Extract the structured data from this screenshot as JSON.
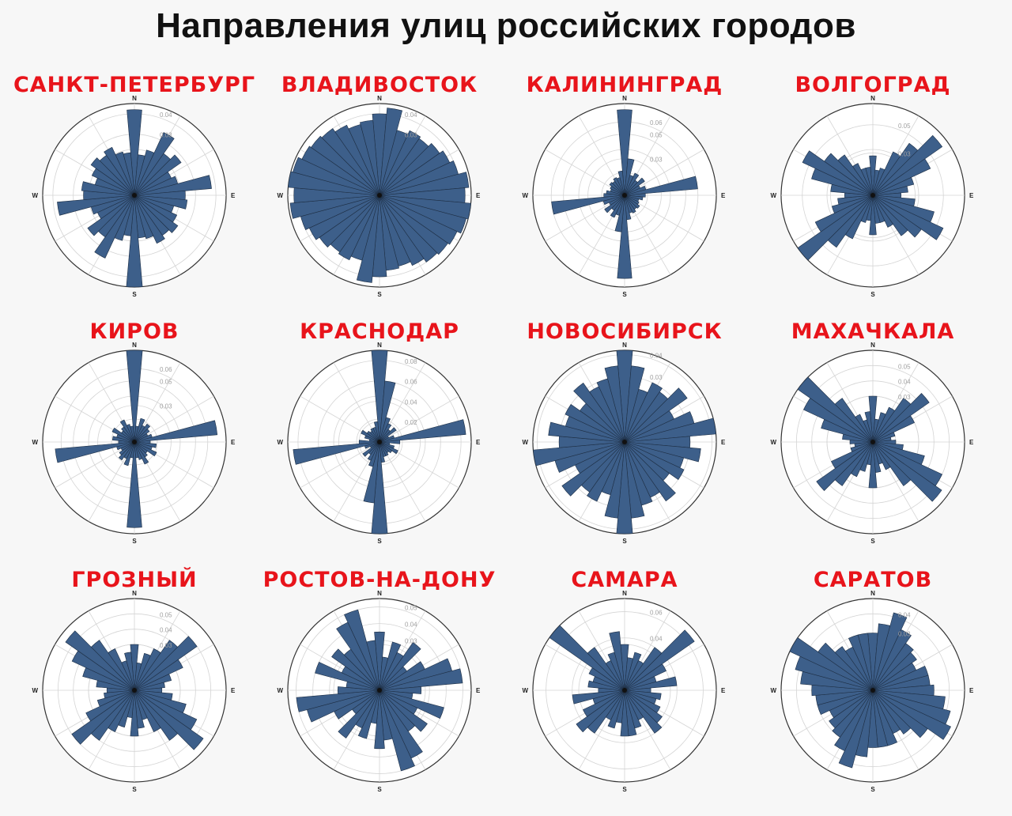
{
  "title": "Направления улиц российских городов",
  "colors": {
    "bar": "#3d5f8a",
    "bar_edge": "#1e2f45",
    "title_city": "#e8141b"
  },
  "cardinals": {
    "n": "N",
    "e": "E",
    "s": "S",
    "w": "W"
  },
  "chart_data": [
    {
      "type": "polar-bar",
      "title": "САНКТ-ПЕТЕРБУРГ",
      "rmax": 0.045,
      "ticks": [
        "0.03",
        "0.04"
      ],
      "tick_values": [
        0.03,
        0.04
      ],
      "values": [
        0.042,
        0.02,
        0.023,
        0.034,
        0.025,
        0.028,
        0.02,
        0.022,
        0.038,
        0.025,
        0.026,
        0.02,
        0.023,
        0.026,
        0.024,
        0.026,
        0.022,
        0.021,
        0.045,
        0.02,
        0.023,
        0.034,
        0.025,
        0.028,
        0.02,
        0.022,
        0.038,
        0.025,
        0.026,
        0.02,
        0.023,
        0.026,
        0.024,
        0.026,
        0.022,
        0.021
      ]
    },
    {
      "type": "polar-bar",
      "title": "ВЛАДИВОСТОК",
      "rmax": 0.045,
      "ticks": [
        "0.03",
        "0.04"
      ],
      "tick_values": [
        0.03,
        0.04
      ],
      "values": [
        0.04,
        0.043,
        0.033,
        0.035,
        0.034,
        0.036,
        0.038,
        0.04,
        0.044,
        0.042,
        0.045,
        0.044,
        0.042,
        0.041,
        0.04,
        0.038,
        0.036,
        0.037,
        0.04,
        0.043,
        0.033,
        0.035,
        0.034,
        0.036,
        0.038,
        0.04,
        0.044,
        0.042,
        0.045,
        0.044,
        0.042,
        0.041,
        0.04,
        0.038,
        0.036,
        0.037
      ]
    },
    {
      "type": "polar-bar",
      "title": "КАЛИНИНГРАД",
      "rmax": 0.075,
      "ticks": [
        "0.03",
        "0.05",
        "0.06"
      ],
      "tick_values": [
        0.03,
        0.05,
        0.06
      ],
      "values": [
        0.07,
        0.03,
        0.017,
        0.02,
        0.015,
        0.02,
        0.014,
        0.018,
        0.06,
        0.017,
        0.015,
        0.012,
        0.013,
        0.015,
        0.014,
        0.016,
        0.015,
        0.02,
        0.068,
        0.03,
        0.017,
        0.02,
        0.015,
        0.02,
        0.014,
        0.018,
        0.06,
        0.017,
        0.015,
        0.012,
        0.013,
        0.015,
        0.014,
        0.016,
        0.015,
        0.02
      ]
    },
    {
      "type": "polar-bar",
      "title": "ВОЛГОГРАД",
      "rmax": 0.065,
      "ticks": [
        "0.03",
        "0.05"
      ],
      "tick_values": [
        0.03,
        0.05
      ],
      "values": [
        0.028,
        0.018,
        0.02,
        0.034,
        0.045,
        0.06,
        0.045,
        0.03,
        0.025,
        0.02,
        0.03,
        0.045,
        0.055,
        0.042,
        0.035,
        0.025,
        0.02,
        0.02,
        0.028,
        0.018,
        0.02,
        0.034,
        0.045,
        0.065,
        0.045,
        0.03,
        0.025,
        0.02,
        0.03,
        0.045,
        0.055,
        0.042,
        0.035,
        0.025,
        0.02,
        0.02
      ]
    },
    {
      "type": "polar-bar",
      "title": "КИРОВ",
      "rmax": 0.075,
      "ticks": [
        "0.03",
        "0.05",
        "0.06"
      ],
      "tick_values": [
        0.03,
        0.05,
        0.06
      ],
      "values": [
        0.075,
        0.013,
        0.02,
        0.015,
        0.018,
        0.015,
        0.012,
        0.015,
        0.068,
        0.013,
        0.018,
        0.015,
        0.02,
        0.013,
        0.015,
        0.02,
        0.015,
        0.013,
        0.07,
        0.013,
        0.02,
        0.015,
        0.018,
        0.015,
        0.012,
        0.015,
        0.065,
        0.013,
        0.018,
        0.015,
        0.02,
        0.013,
        0.015,
        0.02,
        0.015,
        0.013
      ]
    },
    {
      "type": "polar-bar",
      "title": "КРАСНОДАР",
      "rmax": 0.09,
      "ticks": [
        "0.02",
        "0.04",
        "0.06",
        "0.08"
      ],
      "tick_values": [
        0.02,
        0.04,
        0.06,
        0.08
      ],
      "values": [
        0.09,
        0.06,
        0.025,
        0.02,
        0.015,
        0.02,
        0.01,
        0.015,
        0.085,
        0.02,
        0.01,
        0.015,
        0.02,
        0.015,
        0.013,
        0.015,
        0.015,
        0.02,
        0.09,
        0.06,
        0.025,
        0.02,
        0.015,
        0.02,
        0.01,
        0.015,
        0.085,
        0.02,
        0.01,
        0.015,
        0.02,
        0.015,
        0.013,
        0.015,
        0.015,
        0.02
      ]
    },
    {
      "type": "polar-bar",
      "title": "НОВОСИБИРСК",
      "rmax": 0.042,
      "ticks": [
        "0.03",
        "0.04"
      ],
      "tick_values": [
        0.03,
        0.04
      ],
      "values": [
        0.042,
        0.035,
        0.025,
        0.03,
        0.028,
        0.035,
        0.025,
        0.033,
        0.042,
        0.03,
        0.035,
        0.028,
        0.03,
        0.025,
        0.033,
        0.028,
        0.03,
        0.035,
        0.042,
        0.035,
        0.025,
        0.03,
        0.028,
        0.035,
        0.025,
        0.033,
        0.042,
        0.03,
        0.035,
        0.028,
        0.03,
        0.025,
        0.033,
        0.028,
        0.03,
        0.035
      ]
    },
    {
      "type": "polar-bar",
      "title": "МАХАЧКАЛА",
      "rmax": 0.06,
      "ticks": [
        "0.03",
        "0.04",
        "0.05"
      ],
      "tick_values": [
        0.03,
        0.04,
        0.05
      ],
      "values": [
        0.03,
        0.015,
        0.02,
        0.025,
        0.035,
        0.045,
        0.03,
        0.015,
        0.012,
        0.015,
        0.02,
        0.035,
        0.05,
        0.055,
        0.035,
        0.02,
        0.015,
        0.02,
        0.03,
        0.015,
        0.02,
        0.025,
        0.035,
        0.045,
        0.03,
        0.015,
        0.012,
        0.015,
        0.02,
        0.035,
        0.05,
        0.06,
        0.035,
        0.02,
        0.015,
        0.02
      ]
    },
    {
      "type": "polar-bar",
      "title": "ГРОЗНЫЙ",
      "rmax": 0.06,
      "ticks": [
        "0.03",
        "0.04",
        "0.05"
      ],
      "tick_values": [
        0.03,
        0.04,
        0.05
      ],
      "values": [
        0.03,
        0.018,
        0.025,
        0.03,
        0.04,
        0.05,
        0.035,
        0.025,
        0.02,
        0.018,
        0.025,
        0.035,
        0.045,
        0.055,
        0.04,
        0.03,
        0.02,
        0.025,
        0.03,
        0.018,
        0.025,
        0.03,
        0.04,
        0.05,
        0.035,
        0.025,
        0.02,
        0.018,
        0.025,
        0.035,
        0.045,
        0.055,
        0.04,
        0.03,
        0.02,
        0.025
      ]
    },
    {
      "type": "polar-bar",
      "title": "РОСТОВ-НА-ДОНУ",
      "rmax": 0.055,
      "ticks": [
        "0.03",
        "0.04",
        "0.05"
      ],
      "tick_values": [
        0.03,
        0.04,
        0.05
      ],
      "values": [
        0.035,
        0.02,
        0.03,
        0.025,
        0.035,
        0.02,
        0.03,
        0.045,
        0.05,
        0.025,
        0.02,
        0.04,
        0.025,
        0.035,
        0.03,
        0.045,
        0.05,
        0.03,
        0.035,
        0.02,
        0.03,
        0.025,
        0.035,
        0.02,
        0.03,
        0.045,
        0.05,
        0.025,
        0.02,
        0.04,
        0.025,
        0.035,
        0.03,
        0.045,
        0.05,
        0.03
      ]
    },
    {
      "type": "polar-bar",
      "title": "САМАРА",
      "rmax": 0.07,
      "ticks": [
        "0.04",
        "0.06"
      ],
      "tick_values": [
        0.04,
        0.06
      ],
      "values": [
        0.035,
        0.025,
        0.03,
        0.025,
        0.04,
        0.065,
        0.035,
        0.025,
        0.04,
        0.02,
        0.028,
        0.025,
        0.03,
        0.035,
        0.04,
        0.025,
        0.03,
        0.035,
        0.035,
        0.025,
        0.03,
        0.025,
        0.04,
        0.045,
        0.035,
        0.025,
        0.04,
        0.02,
        0.028,
        0.025,
        0.03,
        0.07,
        0.04,
        0.025,
        0.03,
        0.045
      ]
    },
    {
      "type": "polar-bar",
      "title": "САРАТОВ",
      "rmax": 0.048,
      "ticks": [
        "0.03",
        "0.04"
      ],
      "tick_values": [
        0.03,
        0.04
      ],
      "values": [
        0.03,
        0.035,
        0.042,
        0.035,
        0.03,
        0.028,
        0.025,
        0.03,
        0.03,
        0.032,
        0.038,
        0.042,
        0.045,
        0.035,
        0.028,
        0.025,
        0.03,
        0.03,
        0.03,
        0.035,
        0.042,
        0.035,
        0.03,
        0.028,
        0.025,
        0.03,
        0.03,
        0.032,
        0.038,
        0.042,
        0.048,
        0.035,
        0.028,
        0.025,
        0.03,
        0.03
      ]
    }
  ]
}
